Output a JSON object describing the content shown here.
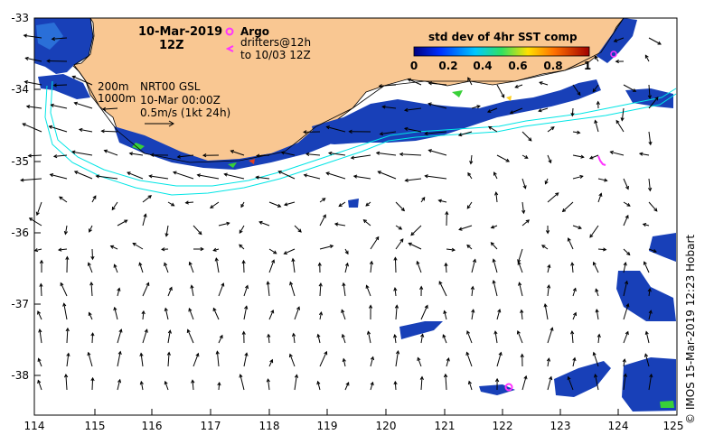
{
  "header": {
    "date": "10-Mar-2019",
    "time": "12Z"
  },
  "legend": {
    "argo_label": "Argo",
    "drifters_line1": "drifters@12h",
    "drifters_line2": "to 10/03 12Z",
    "argo_color": "#ff33ff",
    "drifter_color": "#ff33ff"
  },
  "colorbar": {
    "title": "std dev of 4hr SST comp",
    "ticks": [
      "0",
      "0.2",
      "0.4",
      "0.6",
      "0.8",
      "1"
    ],
    "min": 0,
    "max": 1
  },
  "isobaths": {
    "label_200": "200m",
    "label_1000": "1000m",
    "color": "#00e5e5"
  },
  "currents": {
    "line1": "NRT00 GSL",
    "line2": "10-Mar 00:00Z",
    "line3": "0.5m/s (1kt 24h)"
  },
  "credit": "© IMOS 15-Mar-2019 12:23 Hobart",
  "axes": {
    "lat_ticks": [
      "-33",
      "-34",
      "-35",
      "-36",
      "-37",
      "-38"
    ],
    "lon_ticks": [
      "114",
      "115",
      "116",
      "117",
      "118",
      "119",
      "120",
      "121",
      "122",
      "123",
      "124",
      "125"
    ],
    "lat_range": [
      -38.5,
      -33
    ],
    "lon_range": [
      114,
      125
    ]
  },
  "colors": {
    "land": "#f9c792",
    "coast": "#000000",
    "sst_low": "#1840b8",
    "sst_mid": "#38d038",
    "sst_high": "#e04020"
  }
}
